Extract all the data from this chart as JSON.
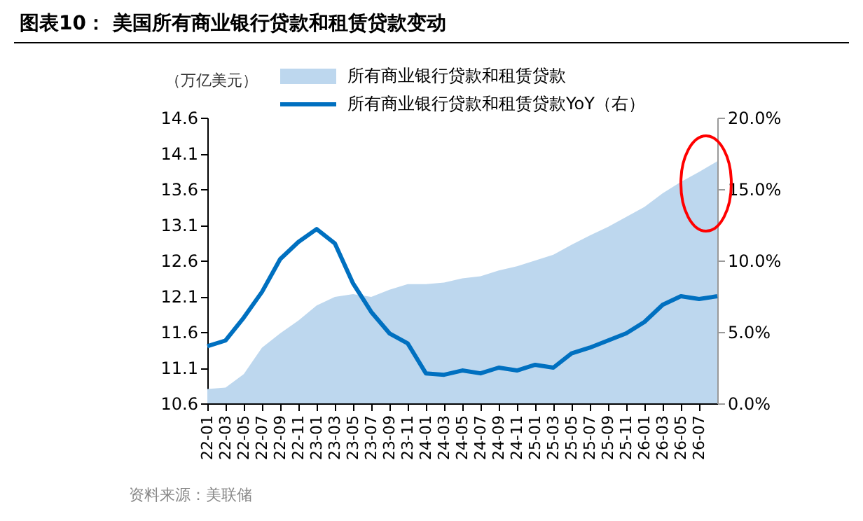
{
  "chart_data": {
    "type": "area",
    "title": "图表10：  美国所有商业银行贷款和租赁贷款变动",
    "ylabel": "（万亿美元）",
    "categories": [
      "22-01",
      "22-03",
      "22-05",
      "22-07",
      "22-09",
      "22-11",
      "23-01",
      "23-03",
      "23-05",
      "23-07",
      "23-09",
      "23-11",
      "24-01",
      "24-03",
      "24-05",
      "24-07",
      "24-09",
      "24-11",
      "25-01",
      "25-03",
      "25-05",
      "25-07",
      "25-09",
      "25-11",
      "26-01",
      "26-03",
      "26-05",
      "26-07",
      null
    ],
    "series": [
      {
        "name": "所有商业银行贷款和租赁贷款",
        "color": "#bdd7ee",
        "values": [
          10.8,
          10.82,
          11.01,
          11.38,
          11.58,
          11.76,
          11.97,
          12.09,
          12.13,
          12.09,
          12.19,
          12.27,
          12.27,
          12.29,
          12.35,
          12.38,
          12.46,
          12.52,
          12.6,
          12.68,
          12.82,
          12.95,
          13.07,
          13.21,
          13.35,
          13.54,
          13.7,
          13.84,
          13.99
        ]
      },
      {
        "name": "所有商业银行贷款和租赁贷款YoY（右）",
        "type": "line",
        "axis": "y2",
        "color": "#0070c0",
        "values": [
          4.0,
          4.4,
          6.0,
          7.8,
          10.1,
          11.3,
          12.2,
          11.2,
          8.4,
          6.4,
          4.9,
          4.2,
          2.1,
          2.0,
          2.3,
          2.1,
          2.5,
          2.3,
          2.7,
          2.5,
          3.5,
          3.9,
          4.4,
          4.9,
          5.7,
          6.9,
          7.5,
          7.3,
          7.5
        ]
      }
    ],
    "ylim": [
      10.6,
      14.6
    ],
    "yticks": [
      10.6,
      11.1,
      11.6,
      12.1,
      12.6,
      13.1,
      13.6,
      14.1,
      14.6
    ],
    "y2lim": [
      0,
      20
    ],
    "y2ticks": [
      {
        "value": 0,
        "label": "0.0%"
      },
      {
        "value": 5,
        "label": "5.0%"
      },
      {
        "value": 10,
        "label": "10.0%"
      },
      {
        "value": 15,
        "label": "15.0%"
      },
      {
        "value": 20,
        "label": "20.0%"
      }
    ],
    "legend": "top",
    "grid": false,
    "line_style": "solid",
    "marker": "none",
    "annotations": [
      "资料来源：美联储"
    ]
  }
}
